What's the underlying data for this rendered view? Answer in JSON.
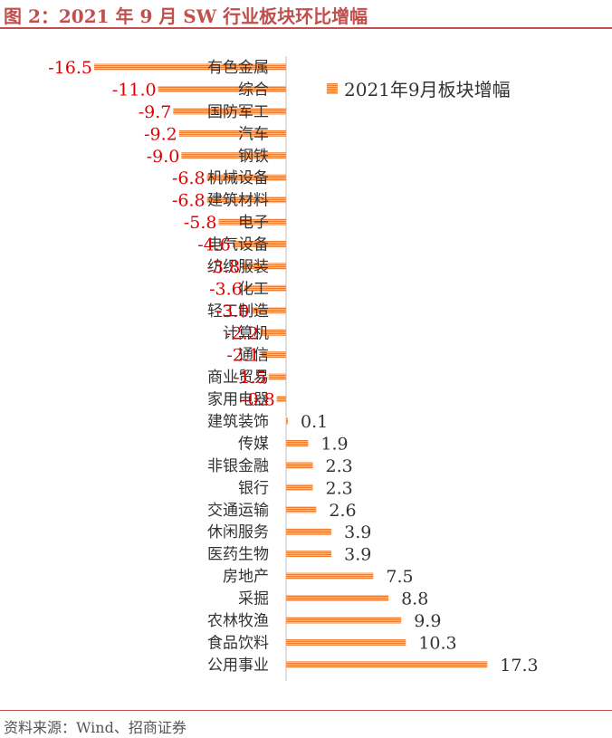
{
  "page": {
    "title": "图 2：2021 年 9 月 SW 行业板块环比增幅",
    "source": "资料来源：Wind、招商证券"
  },
  "chart_data": {
    "type": "bar",
    "orientation": "horizontal",
    "title": "2021 年 9 月 SW 行业板块环比增幅",
    "categories": [
      "有色金属",
      "综合",
      "国防军工",
      "汽车",
      "钢铁",
      "机械设备",
      "建筑材料",
      "电子",
      "电气设备",
      "纺织服装",
      "化工",
      "轻工制造",
      "计算机",
      "通信",
      "商业贸易",
      "家用电器",
      "建筑装饰",
      "传媒",
      "非银金融",
      "银行",
      "交通运输",
      "休闲服务",
      "医药生物",
      "房地产",
      "采掘",
      "农林牧渔",
      "食品饮料",
      "公用事业"
    ],
    "series": [
      {
        "name": "2021年9月板块增幅",
        "values": [
          -16.5,
          -11.0,
          -9.7,
          -9.2,
          -9.0,
          -6.8,
          -6.8,
          -5.8,
          -4.6,
          -3.8,
          -3.6,
          -3.0,
          -2.2,
          -2.1,
          -1.5,
          -0.8,
          0.1,
          1.9,
          2.3,
          2.3,
          2.6,
          3.9,
          3.9,
          7.5,
          8.8,
          9.9,
          10.3,
          17.3
        ],
        "labels": [
          "-16.5",
          "-11.0",
          "-9.7",
          "-9.2",
          "-9.0",
          "-6.8",
          "-6.8",
          "-5.8",
          "-4.6",
          "-3.8",
          "-3.6",
          "-3.0",
          "-2.2",
          "-2.1",
          "-1.5",
          "-0.8",
          "0.1",
          "1.9",
          "2.3",
          "2.3",
          "2.6",
          "3.9",
          "3.9",
          "7.5",
          "8.8",
          "9.9",
          "10.3",
          "17.3"
        ]
      }
    ],
    "legend_position": "top-right",
    "colors": {
      "bar": "#ed7d31",
      "bar_stripe": "#f6b98a",
      "negative_label": "#e00000",
      "positive_label": "#333333",
      "axis": "#bfbfbf",
      "accent": "#c0504d"
    }
  }
}
